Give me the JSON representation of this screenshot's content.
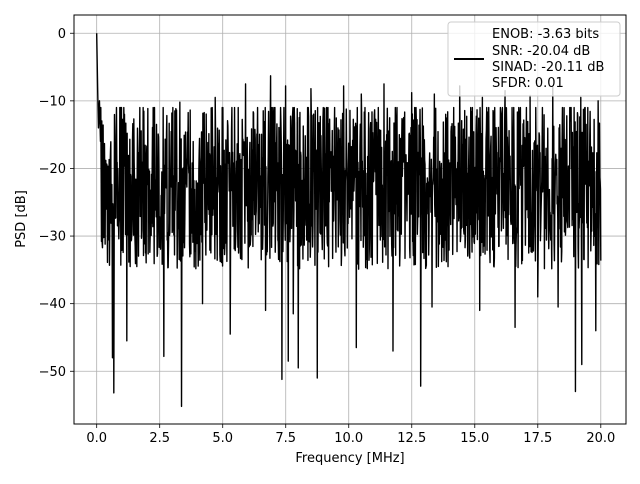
{
  "chart_data": {
    "type": "line",
    "xlabel": "Frequency [MHz]",
    "ylabel": "PSD [dB]",
    "xlim": [
      -0.9,
      21.0
    ],
    "ylim": [
      -57.8,
      2.7
    ],
    "grid": true,
    "x_ticks": [
      0.0,
      2.5,
      5.0,
      7.5,
      10.0,
      12.5,
      15.0,
      17.5,
      20.0
    ],
    "x_tick_labels": [
      "0.0",
      "2.5",
      "5.0",
      "7.5",
      "10.0",
      "12.5",
      "15.0",
      "17.5",
      "20.0"
    ],
    "y_ticks": [
      0,
      -10,
      -20,
      -30,
      -40,
      -50
    ],
    "y_tick_labels": [
      "0",
      "−10",
      "−20",
      "−30",
      "−40",
      "−50"
    ],
    "legend": {
      "placement": "top-right",
      "lines": [
        "ENOB: -3.63 bits",
        "SNR: -20.04 dB",
        "SINAD: -20.11 dB",
        "SFDR: 0.01"
      ]
    },
    "series": [
      {
        "color": "#000000",
        "x_start": 0.0,
        "x_end": 20.0,
        "noise_floor_mean": -20,
        "noise_upper_envelope": -12,
        "noise_lower_envelope": -33,
        "peak": {
          "x": 0.0,
          "y": 0.0
        },
        "near_dc": [
          [
            0.0,
            0.0
          ],
          [
            0.04,
            -8.5
          ],
          [
            0.07,
            -14.0
          ],
          [
            0.11,
            -10.0
          ],
          [
            0.15,
            -16.0
          ]
        ],
        "dips": [
          [
            0.68,
            -53.2
          ],
          [
            0.62,
            -48.0
          ],
          [
            1.2,
            -45.5
          ],
          [
            2.67,
            -47.8
          ],
          [
            3.37,
            -55.2
          ],
          [
            4.2,
            -40.0
          ],
          [
            5.3,
            -44.5
          ],
          [
            6.7,
            -41.0
          ],
          [
            7.35,
            -51.2
          ],
          [
            7.6,
            -48.5
          ],
          [
            7.8,
            -41.5
          ],
          [
            8.0,
            -49.5
          ],
          [
            8.75,
            -51.0
          ],
          [
            10.3,
            -46.5
          ],
          [
            11.75,
            -47.0
          ],
          [
            12.85,
            -52.2
          ],
          [
            13.3,
            -40.5
          ],
          [
            15.2,
            -41.0
          ],
          [
            16.6,
            -43.5
          ],
          [
            17.5,
            -39.0
          ],
          [
            18.3,
            -40.5
          ],
          [
            19.0,
            -53.0
          ],
          [
            19.25,
            -49.0
          ],
          [
            19.8,
            -44.0
          ]
        ],
        "spikes": [
          [
            1.1,
            -12.0
          ],
          [
            2.3,
            -11.0
          ],
          [
            3.3,
            -10.2
          ],
          [
            4.7,
            -9.5
          ],
          [
            5.9,
            -7.5
          ],
          [
            6.9,
            -6.3
          ],
          [
            7.5,
            -7.8
          ],
          [
            8.5,
            -8.2
          ],
          [
            9.8,
            -7.8
          ],
          [
            10.5,
            -9.0
          ],
          [
            11.4,
            -7.5
          ],
          [
            12.5,
            -8.8
          ],
          [
            13.4,
            -9.0
          ],
          [
            14.4,
            -7.8
          ],
          [
            15.3,
            -9.5
          ],
          [
            16.2,
            -8.5
          ],
          [
            17.2,
            -9.2
          ],
          [
            18.1,
            -8.0
          ],
          [
            19.2,
            -9.5
          ],
          [
            19.9,
            -10.0
          ]
        ]
      }
    ]
  }
}
